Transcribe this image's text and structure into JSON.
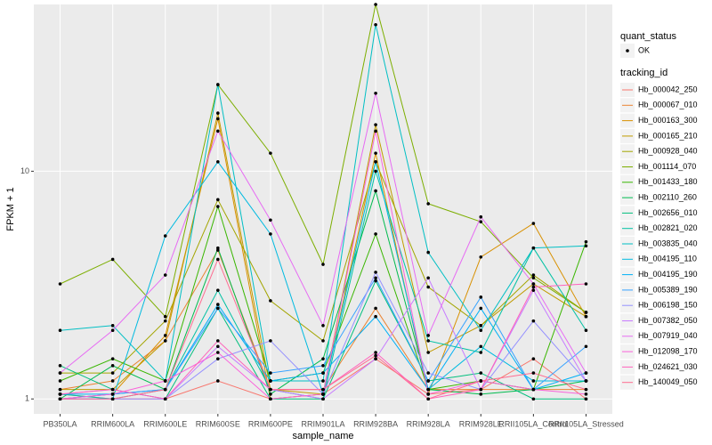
{
  "chart_data": {
    "type": "line",
    "log_scale": true,
    "grid": true,
    "xlabel": "sample_name",
    "ylabel": "FPKM + 1",
    "legend_title": "tracking_id",
    "point_legend_title": "quant_status",
    "point_legend_label": "OK",
    "categories": [
      "PB350LA",
      "RRIM600LA",
      "RRIM600LE",
      "RRIM600SE",
      "RRIM600PE",
      "RRIM901LA",
      "RRIM928BA",
      "RRIM928LA",
      "RRIM928LE",
      "RRII105LA_Control",
      "RRII105LA_Stressed"
    ],
    "ylim": [
      0.86,
      54
    ],
    "yticks": [
      1,
      10
    ],
    "series": [
      {
        "name": "Hb_000042_250",
        "color": "#F8766D",
        "values": [
          1.05,
          1.0,
          1.0,
          1.2,
          1.0,
          1.05,
          1.5,
          1.05,
          1.1,
          1.5,
          1.0
        ]
      },
      {
        "name": "Hb_000067_010",
        "color": "#EA8331",
        "values": [
          1.1,
          1.2,
          1.8,
          4.5,
          1.1,
          1.1,
          2.5,
          1.1,
          1.1,
          1.1,
          1.1
        ]
      },
      {
        "name": "Hb_000163_300",
        "color": "#D89000",
        "values": [
          1.0,
          1.05,
          1.9,
          17,
          1.0,
          1.05,
          12,
          1.05,
          4.2,
          5.9,
          2.3
        ]
      },
      {
        "name": "Hb_000165_210",
        "color": "#C09B00",
        "values": [
          1.1,
          1.1,
          1.8,
          18,
          1.1,
          1.05,
          16,
          1.6,
          2.1,
          3.2,
          2.3
        ]
      },
      {
        "name": "Hb_000928_040",
        "color": "#A3A500",
        "values": [
          1.3,
          1.3,
          2.2,
          7.5,
          2.7,
          1.8,
          11,
          3.1,
          2.1,
          3.5,
          2.4
        ]
      },
      {
        "name": "Hb_001114_070",
        "color": "#7CAE00",
        "values": [
          3.2,
          4.1,
          2.3,
          24,
          12,
          3.9,
          54,
          7.2,
          6.0,
          3.4,
          2.4
        ]
      },
      {
        "name": "Hb_001433_180",
        "color": "#39B600",
        "values": [
          1.2,
          1.5,
          1.2,
          7.0,
          1.2,
          1.3,
          5.3,
          1.1,
          1.2,
          1.1,
          4.9
        ]
      },
      {
        "name": "Hb_002110_260",
        "color": "#00BB4E",
        "values": [
          1.0,
          1.4,
          1.1,
          4.6,
          1.05,
          1.5,
          8.2,
          1.1,
          1.05,
          1.1,
          1.2
        ]
      },
      {
        "name": "Hb_002656_010",
        "color": "#00BF7D",
        "values": [
          1.4,
          1.1,
          1.0,
          2.5,
          1.0,
          1.0,
          3.3,
          1.2,
          1.3,
          1.0,
          1.0
        ]
      },
      {
        "name": "Hb_002821_020",
        "color": "#00C1A3",
        "values": [
          1.05,
          1.0,
          1.1,
          3.0,
          1.1,
          1.0,
          10,
          1.8,
          1.6,
          4.6,
          2.0
        ]
      },
      {
        "name": "Hb_003835_040",
        "color": "#00BFC4",
        "values": [
          2.0,
          2.1,
          1.2,
          24,
          1.2,
          1.2,
          44,
          4.4,
          2.0,
          4.6,
          4.7
        ]
      },
      {
        "name": "Hb_004195_110",
        "color": "#00BAE0",
        "values": [
          1.0,
          1.0,
          5.2,
          11,
          5.3,
          1.05,
          11,
          1.1,
          1.7,
          1.2,
          1.2
        ]
      },
      {
        "name": "Hb_004195_190",
        "color": "#00B0F6",
        "values": [
          1.05,
          1.05,
          1.1,
          2.6,
          1.2,
          1.3,
          2.3,
          1.1,
          2.5,
          1.1,
          1.3
        ]
      },
      {
        "name": "Hb_005389_190",
        "color": "#35A2FF",
        "values": [
          1.0,
          1.05,
          1.1,
          2.5,
          1.3,
          1.4,
          3.4,
          1.2,
          2.8,
          1.1,
          1.7
        ]
      },
      {
        "name": "Hb_006198_150",
        "color": "#9590FF",
        "values": [
          1.0,
          1.0,
          1.0,
          1.5,
          1.8,
          1.05,
          3.6,
          1.3,
          1.1,
          2.2,
          1.2
        ]
      },
      {
        "name": "Hb_007382_050",
        "color": "#C77CFF",
        "values": [
          1.05,
          1.1,
          1.0,
          1.7,
          1.1,
          1.0,
          1.5,
          3.4,
          1.1,
          3.0,
          1.2
        ]
      },
      {
        "name": "Hb_007919_040",
        "color": "#E76BF3",
        "values": [
          1.3,
          2.0,
          3.5,
          15,
          6.1,
          2.1,
          22,
          1.9,
          6.3,
          3.2,
          1.3
        ]
      },
      {
        "name": "Hb_012098_170",
        "color": "#FA62DB",
        "values": [
          1.0,
          1.05,
          1.2,
          1.6,
          1.0,
          1.05,
          15,
          1.05,
          1.2,
          1.1,
          1.05
        ]
      },
      {
        "name": "Hb_024621_030",
        "color": "#FF62BC",
        "values": [
          1.05,
          1.1,
          1.0,
          1.8,
          1.1,
          1.1,
          1.6,
          1.0,
          1.1,
          3.1,
          3.2
        ]
      },
      {
        "name": "Hb_140049_050",
        "color": "#FF6C91",
        "values": [
          1.0,
          1.0,
          1.1,
          4.1,
          1.1,
          1.1,
          1.55,
          1.0,
          1.2,
          1.3,
          1.1
        ]
      }
    ]
  }
}
